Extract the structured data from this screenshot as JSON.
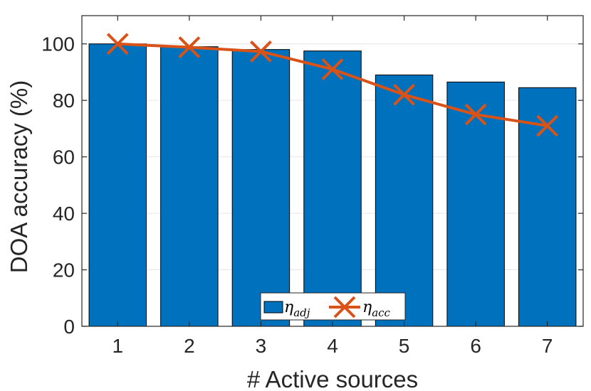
{
  "chart_data": {
    "type": "bar",
    "categories": [
      "1",
      "2",
      "3",
      "4",
      "5",
      "6",
      "7"
    ],
    "series": [
      {
        "name": "η_adj",
        "type": "bar",
        "values": [
          100,
          99,
          98,
          97.5,
          89,
          86.5,
          84.5
        ],
        "color": "#0072BD"
      },
      {
        "name": "η_acc",
        "type": "line",
        "marker": "x",
        "values": [
          100,
          98.8,
          97.3,
          91,
          82,
          75,
          71
        ],
        "color": "#D95319"
      }
    ],
    "xlabel": "# Active sources",
    "ylabel": "DOA accuracy (%)",
    "ylim": [
      0,
      110
    ],
    "yticks": [
      0,
      20,
      40,
      60,
      80,
      100
    ],
    "grid": "y",
    "legend": {
      "placement": "bottom-center",
      "orientation": "horizontal",
      "entries": [
        {
          "base": "η",
          "sub": "adj"
        },
        {
          "base": "η",
          "sub": "acc"
        }
      ]
    }
  }
}
